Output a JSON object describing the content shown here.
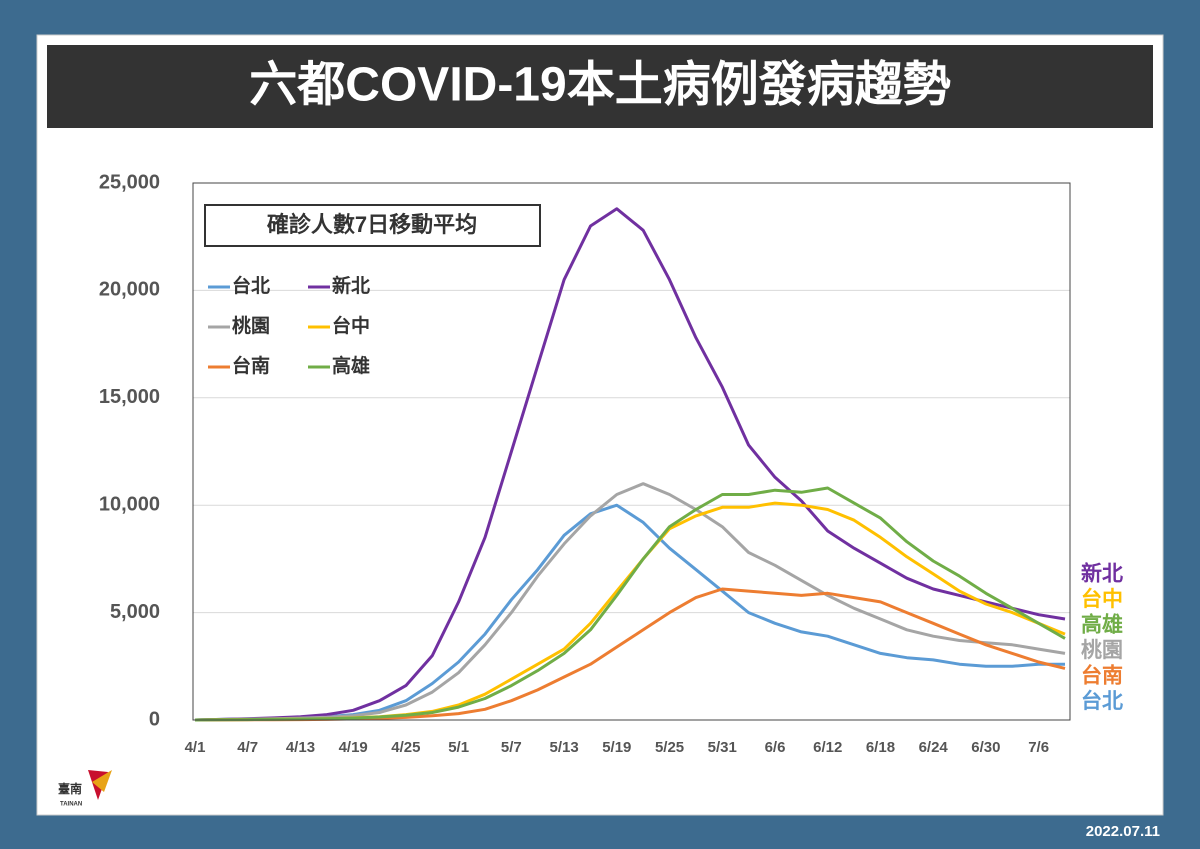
{
  "chart_data": {
    "type": "line",
    "title": "六都COVID-19本土病例發病趨勢",
    "legend_title": "確診人數7日移動平均",
    "categories": [
      "4/1",
      null,
      "4/7",
      null,
      "4/13",
      null,
      "4/19",
      null,
      "4/25",
      null,
      "5/1",
      null,
      "5/7",
      null,
      "5/13",
      null,
      "5/19",
      null,
      "5/25",
      null,
      "5/31",
      null,
      "6/6",
      null,
      "6/12",
      null,
      "6/18",
      null,
      "6/24",
      null,
      "6/30",
      null,
      "7/6",
      null
    ],
    "series": [
      {
        "name": "台北",
        "color": "#5b9bd5",
        "values": [
          0,
          30,
          50,
          70,
          100,
          150,
          250,
          450,
          900,
          1700,
          2700,
          4000,
          5600,
          7000,
          8600,
          9600,
          10000,
          9200,
          8000,
          7000,
          6000,
          5000,
          4500,
          4100,
          3900,
          3500,
          3100,
          2900,
          2800,
          2600,
          2500,
          2500,
          2600,
          2600
        ]
      },
      {
        "name": "新北",
        "color": "#7030a0",
        "values": [
          0,
          30,
          60,
          100,
          150,
          250,
          450,
          900,
          1600,
          3000,
          5500,
          8500,
          12500,
          16500,
          20500,
          23000,
          23800,
          22800,
          20500,
          17800,
          15500,
          12800,
          11300,
          10200,
          8800,
          8000,
          7300,
          6600,
          6100,
          5800,
          5500,
          5200,
          4900,
          4700
        ]
      },
      {
        "name": "桃園",
        "color": "#a5a5a5",
        "values": [
          0,
          20,
          40,
          60,
          90,
          130,
          200,
          350,
          700,
          1300,
          2200,
          3500,
          5000,
          6700,
          8200,
          9500,
          10500,
          11000,
          10500,
          9800,
          9000,
          7800,
          7200,
          6500,
          5800,
          5200,
          4700,
          4200,
          3900,
          3700,
          3600,
          3500,
          3300,
          3100
        ]
      },
      {
        "name": "台中",
        "color": "#ffc000",
        "values": [
          0,
          10,
          20,
          30,
          40,
          60,
          100,
          150,
          250,
          400,
          700,
          1200,
          1900,
          2600,
          3300,
          4500,
          6000,
          7500,
          8900,
          9500,
          9900,
          9900,
          10100,
          10000,
          9800,
          9300,
          8500,
          7600,
          6800,
          6000,
          5400,
          5000,
          4500,
          4000
        ]
      },
      {
        "name": "台南",
        "color": "#ed7d31",
        "values": [
          0,
          5,
          10,
          15,
          20,
          30,
          50,
          80,
          120,
          200,
          300,
          500,
          900,
          1400,
          2000,
          2600,
          3400,
          4200,
          5000,
          5700,
          6100,
          6000,
          5900,
          5800,
          5900,
          5700,
          5500,
          5000,
          4500,
          4000,
          3500,
          3100,
          2700,
          2400
        ]
      },
      {
        "name": "高雄",
        "color": "#70ad47",
        "values": [
          0,
          10,
          20,
          30,
          40,
          60,
          90,
          140,
          220,
          350,
          600,
          1000,
          1600,
          2300,
          3100,
          4200,
          5800,
          7500,
          9000,
          9800,
          10500,
          10500,
          10700,
          10600,
          10800,
          10100,
          9400,
          8300,
          7400,
          6700,
          5900,
          5200,
          4500,
          3800
        ]
      }
    ],
    "ylim": [
      0,
      25000
    ],
    "yticks": [
      0,
      {
        "value": 5000,
        "label": "5,000"
      },
      {
        "value": 10000,
        "label": "10,000"
      },
      {
        "value": 15000,
        "label": "15,000"
      },
      {
        "value": 20000,
        "label": "20,000"
      },
      {
        "value": 25000,
        "label": "25,000"
      }
    ],
    "grid": true
  },
  "footer": {
    "date": "2022.07.11"
  },
  "logo": {
    "text": "臺南",
    "subtext": "TAINAN"
  }
}
